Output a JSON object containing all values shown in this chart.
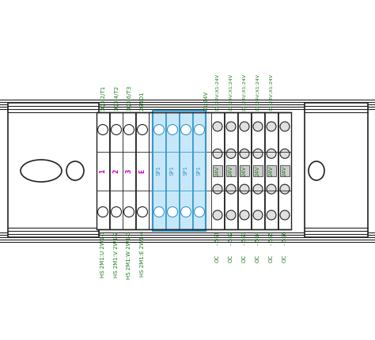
{
  "bg_color": "#ffffff",
  "rail_color": "#222222",
  "blue_fill": "#c8e8fa",
  "blue_outline": "#3399cc",
  "green_text": "#1a7a1a",
  "magenta_text": "#cc00cc",
  "top_labels_left": [
    "3Q3:2/T1",
    "3Q3:4/T2",
    "3Q3:6/T3",
    "2GND1"
  ],
  "top_labels_right": [
    "X1:24V",
    "X1:24V;X1:24V",
    "X1:24V;X1:24V",
    "X1:24V;X1:24V",
    "X1:24V;X1:24V",
    "X1:24V;X1:24V"
  ],
  "bottom_labels_left": [
    "HS 2M1:U 2W1-1",
    "HS 2M1:V 2W1-2",
    "HS 2M1:W 2W1-3",
    "HS 2M1:E 2W1-4"
  ],
  "bottom_labels_right_a": [
    "- 5S1",
    "- 5S2",
    "- 5S3",
    "- 5S4",
    "- 5S5",
    "- 5S6"
  ],
  "bottom_labels_right_b": [
    "OC",
    "OC",
    "OC",
    "OC",
    "OC",
    "OC"
  ],
  "mid_labels_pink": [
    "1",
    "2",
    "3",
    "E"
  ],
  "mid_labels_blue": [
    "SP1",
    "SP1",
    "SP1",
    "SP1"
  ],
  "mid_labels_green": [
    "24V",
    "24V",
    "24V",
    "24V",
    "24V",
    "24V"
  ],
  "figsize": [
    4.74,
    4.3
  ],
  "dpi": 100
}
